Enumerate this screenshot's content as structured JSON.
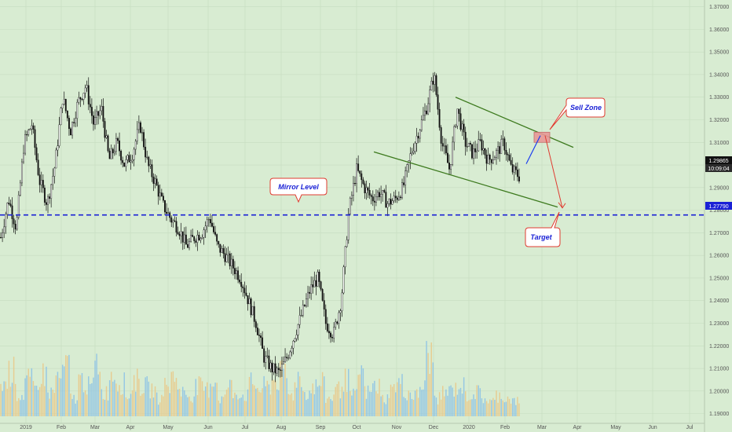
{
  "chart_data": {
    "type": "candlestick",
    "y_axis": {
      "ticks": [
        "1.19000",
        "1.20000",
        "1.21000",
        "1.22000",
        "1.23000",
        "1.24000",
        "1.25000",
        "1.26000",
        "1.27000",
        "1.28000",
        "1.29000",
        "1.30000",
        "1.31000",
        "1.32000",
        "1.33000",
        "1.34000",
        "1.35000",
        "1.36000",
        "1.37000"
      ],
      "ylim": [
        1.1857,
        1.3716
      ]
    },
    "x_axis": {
      "ticks": [
        "2019",
        "Feb",
        "Mar",
        "Apr",
        "May",
        "Jun",
        "Jul",
        "Aug",
        "Sep",
        "Oct",
        "Nov",
        "Dec",
        "2020",
        "Feb",
        "Mar",
        "Apr",
        "May",
        "Jun",
        "Jul"
      ]
    },
    "series": [
      {
        "kind": "price",
        "values": [
          1.268,
          1.285,
          1.272,
          1.31,
          1.318,
          1.293,
          1.283,
          1.3,
          1.33,
          1.315,
          1.328,
          1.335,
          1.318,
          1.325,
          1.302,
          1.31,
          1.3,
          1.305,
          1.318,
          1.3,
          1.292,
          1.282,
          1.276,
          1.272,
          1.264,
          1.268,
          1.27,
          1.277,
          1.264,
          1.26,
          1.255,
          1.25,
          1.24,
          1.23,
          1.215,
          1.21,
          1.208,
          1.215,
          1.225,
          1.235,
          1.245,
          1.25,
          1.23,
          1.225,
          1.24,
          1.28,
          1.298,
          1.29,
          1.285,
          1.288,
          1.283,
          1.285,
          1.29,
          1.305,
          1.315,
          1.325,
          1.34,
          1.31,
          1.298,
          1.325,
          1.31,
          1.305,
          1.31,
          1.302,
          1.305,
          1.31,
          1.298,
          1.295
        ]
      },
      {
        "kind": "volume",
        "values": [
          0.55,
          0.75,
          0.35,
          0.6,
          0.45,
          0.7,
          0.4,
          0.65,
          0.85,
          0.3,
          0.6,
          0.5,
          0.9,
          0.4,
          0.7,
          0.55,
          0.35,
          0.6,
          0.5,
          0.45,
          0.3,
          0.5,
          0.65,
          0.4,
          0.35,
          0.5,
          0.45,
          0.6,
          0.3,
          0.5,
          0.4,
          0.35,
          0.55,
          0.45,
          0.5,
          0.6,
          0.7,
          0.35,
          0.65,
          0.4,
          0.5,
          0.55,
          0.3,
          0.45,
          0.6,
          0.35,
          0.75,
          0.4,
          0.5,
          0.3,
          0.45,
          0.55,
          0.4,
          0.35,
          0.5,
          1.0,
          0.3,
          0.4,
          0.45,
          0.5,
          0.35,
          0.4,
          0.3,
          0.25,
          0.35,
          0.3,
          0.25,
          0.2
        ]
      }
    ],
    "title": "",
    "xlabel": "",
    "ylabel": "",
    "mirror_level_value": 1.2779,
    "triangle_channel": {
      "upper": [
        [
          1.33,
          1.3
        ]
      ],
      "lower": [
        [
          1.305,
          1.283
        ]
      ]
    },
    "wedge_lines": {
      "upper": [
        [
          1.33,
          1.3078
        ]
      ],
      "lower": [
        [
          1.3058,
          1.2814
        ]
      ]
    },
    "zone_box_value_range": [
      1.31,
      1.3145
    ],
    "projection_blue_values": [
      1.3005,
      1.313
    ],
    "projection_red_values": [
      1.313,
      1.281
    ],
    "target_arrow_value": 1.2785,
    "colors": {
      "background": "#d8ecd2",
      "grid": "#c6dcc0",
      "candle": "#111111",
      "mirror_line": "#1a21d6",
      "wedge": "#3d7a1e",
      "projection_blue": "#1a3cf0",
      "projection_red": "#e03b30",
      "zone_fill": "#e89898",
      "volume_up": "#e9c98a",
      "volume_down": "#8ec3e4",
      "badge_price": "#1a21d6",
      "badge_time": "#111111"
    }
  },
  "labels": {
    "mirror_level": "Mirror Level",
    "sell_zone": "Sell Zone",
    "target": "Target",
    "badge_current_price": "1.29865",
    "badge_time": "10:09:04",
    "badge_level": "1.27790"
  }
}
